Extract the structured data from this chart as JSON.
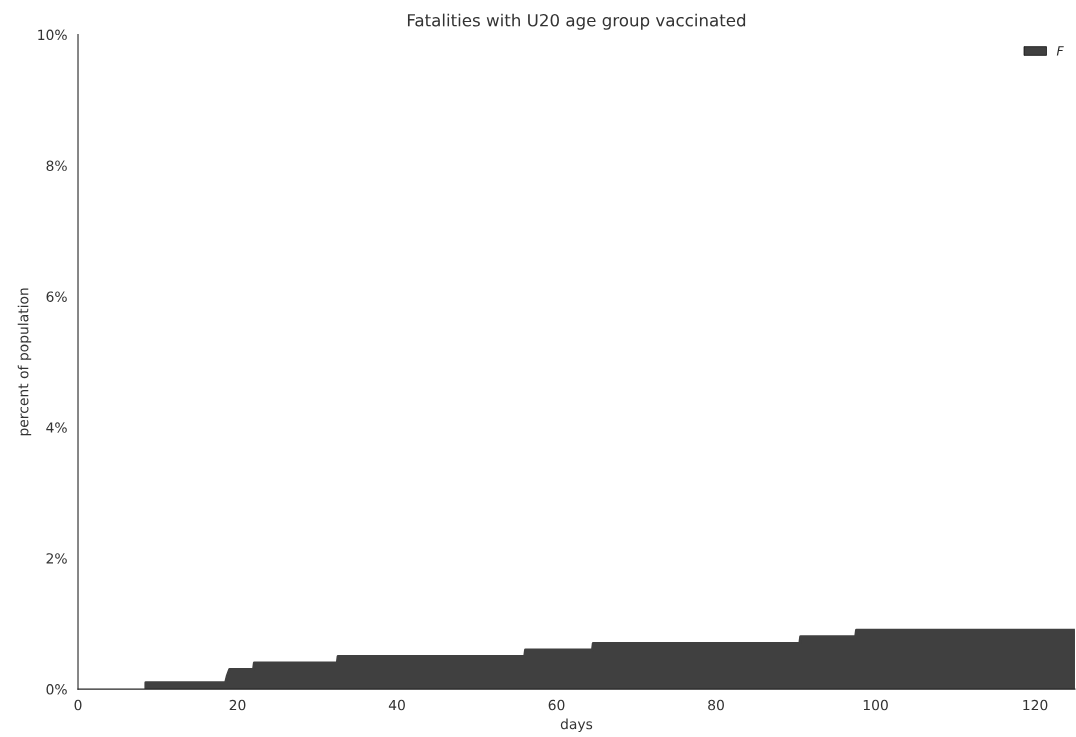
{
  "chart_data": {
    "type": "area",
    "title": "Fatalities with U20 age group vaccinated",
    "xlabel": "days",
    "ylabel": "percent of population",
    "x": [
      8.5,
      18.5,
      18.7,
      19,
      22,
      22.1,
      32.5,
      32.6,
      56,
      56.1,
      64.5,
      64.6,
      90.5,
      90.6,
      97.5,
      97.6,
      125
    ],
    "series": [
      {
        "name": "F",
        "color": "#404040",
        "values": [
          0.1,
          0.1,
          0.2,
          0.3,
          0.3,
          0.4,
          0.4,
          0.5,
          0.5,
          0.6,
          0.6,
          0.7,
          0.7,
          0.8,
          0.8,
          0.9,
          0.9
        ]
      }
    ],
    "xlim": [
      0,
      125
    ],
    "xticks": [
      0,
      20,
      40,
      60,
      80,
      100,
      120
    ],
    "ylim": [
      0,
      10
    ],
    "yticks": [
      {
        "value": 0,
        "label": "0%"
      },
      {
        "value": 2,
        "label": "2%"
      },
      {
        "value": 4,
        "label": "4%"
      },
      {
        "value": 6,
        "label": "6%"
      },
      {
        "value": 8,
        "label": "8%"
      },
      {
        "value": 10,
        "label": "10%"
      }
    ],
    "grid": false,
    "legend": "top right"
  }
}
